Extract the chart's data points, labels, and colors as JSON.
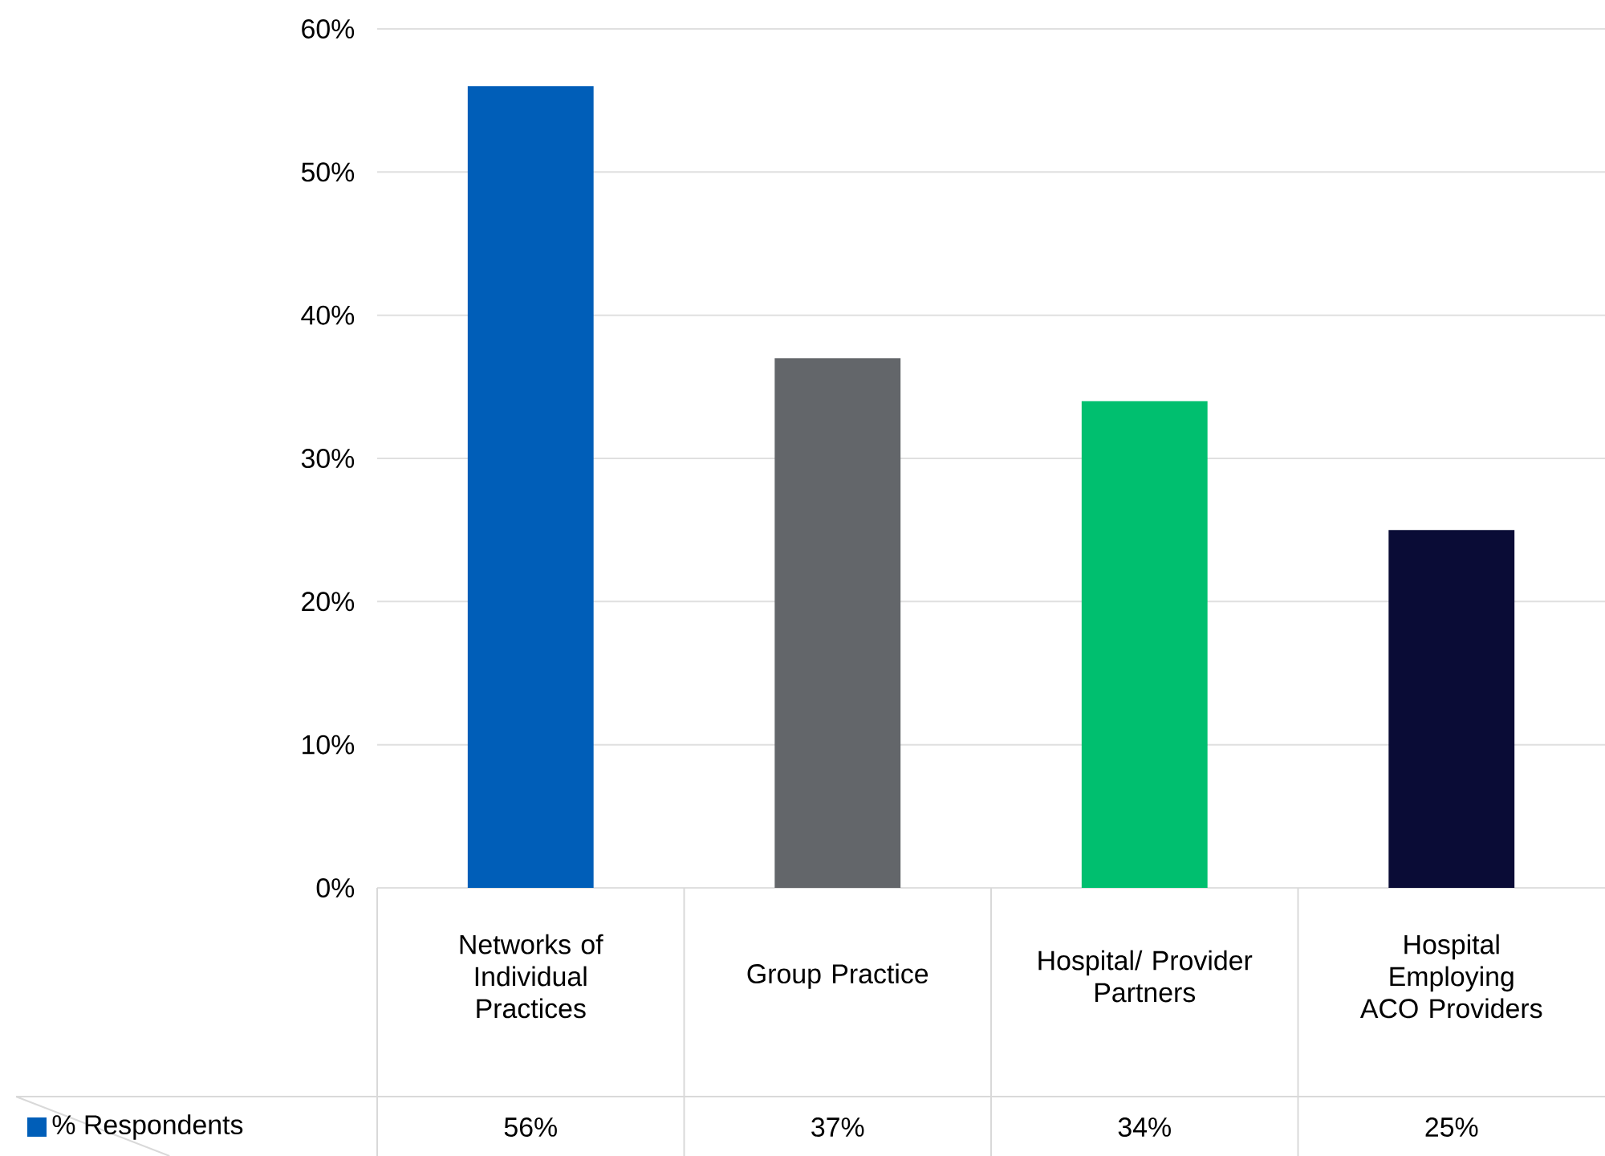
{
  "chart_data": {
    "type": "bar",
    "categories": [
      "Networks of Individual Practices",
      "Group Practice",
      "Hospital/ Provider Partners",
      "Hospital Employing ACO Providers"
    ],
    "series": [
      {
        "name": "% Respondents",
        "colors": [
          "#005eb8",
          "#63666a",
          "#00bf6f",
          "#0a0c36"
        ],
        "values": [
          56,
          37,
          34,
          25
        ],
        "value_labels": [
          "56%",
          "37%",
          "34%",
          "25%"
        ]
      }
    ],
    "ylim": [
      0,
      60
    ],
    "yticks": [
      {
        "value": 0,
        "label": "0%"
      },
      {
        "value": 10,
        "label": "10%"
      },
      {
        "value": 20,
        "label": "20%"
      },
      {
        "value": 30,
        "label": "30%"
      },
      {
        "value": 40,
        "label": "40%"
      },
      {
        "value": 50,
        "label": "50%"
      },
      {
        "value": 60,
        "label": "60%"
      }
    ],
    "grid": "y",
    "legend": "bottom"
  }
}
